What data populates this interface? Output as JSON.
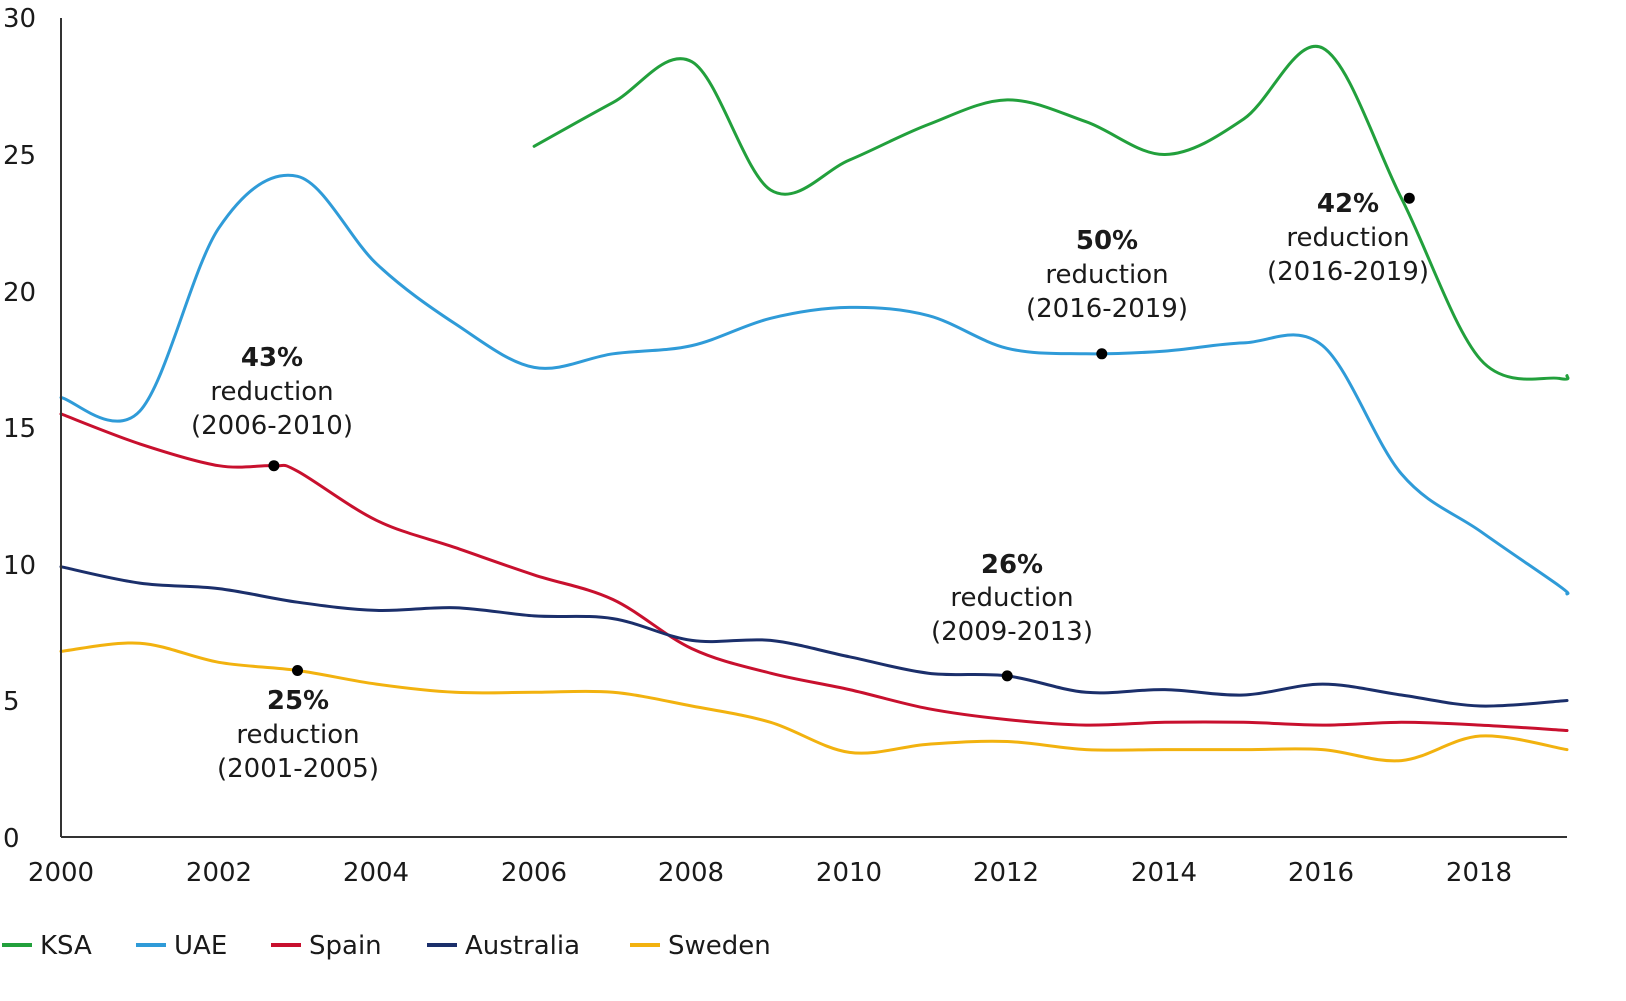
{
  "chart_data": {
    "type": "line",
    "title": "",
    "xlabel": "",
    "ylabel": "",
    "xlim": [
      2000,
      2019.1
    ],
    "ylim": [
      0,
      30
    ],
    "x_ticks": [
      "2000",
      "2002",
      "2004",
      "2006",
      "2008",
      "2010",
      "2012",
      "2014",
      "2016",
      "2018"
    ],
    "y_ticks": [
      "0",
      "5",
      "10",
      "15",
      "20",
      "25",
      "30"
    ],
    "grid": false,
    "legend_position": "bottom",
    "series": [
      {
        "name": "KSA",
        "color": "#22a03c",
        "points": [
          [
            2006,
            25.3
          ],
          [
            2007,
            26.9
          ],
          [
            2008,
            28.4
          ],
          [
            2009,
            23.7
          ],
          [
            2010,
            24.8
          ],
          [
            2011,
            26.1
          ],
          [
            2012,
            27.0
          ],
          [
            2013,
            26.2
          ],
          [
            2014,
            25.0
          ],
          [
            2015,
            26.3
          ],
          [
            2016,
            28.9
          ],
          [
            2017,
            23.4
          ],
          [
            2018,
            17.5
          ],
          [
            2019,
            16.8
          ],
          [
            2019.1,
            16.9
          ]
        ]
      },
      {
        "name": "UAE",
        "color": "#2f9bd8",
        "points": [
          [
            2000,
            16.1
          ],
          [
            2001,
            15.6
          ],
          [
            2002,
            22.3
          ],
          [
            2003,
            24.2
          ],
          [
            2004,
            21.0
          ],
          [
            2005,
            18.8
          ],
          [
            2006,
            17.2
          ],
          [
            2007,
            17.7
          ],
          [
            2008,
            18.0
          ],
          [
            2009,
            19.0
          ],
          [
            2010,
            19.4
          ],
          [
            2011,
            19.1
          ],
          [
            2012,
            17.9
          ],
          [
            2013,
            17.7
          ],
          [
            2014,
            17.8
          ],
          [
            2015,
            18.1
          ],
          [
            2016,
            18.0
          ],
          [
            2017,
            13.3
          ],
          [
            2018,
            11.2
          ],
          [
            2019,
            9.2
          ],
          [
            2019.1,
            8.9
          ]
        ]
      },
      {
        "name": "Spain",
        "color": "#c8102e",
        "points": [
          [
            2000,
            15.5
          ],
          [
            2001,
            14.4
          ],
          [
            2002,
            13.6
          ],
          [
            2002.7,
            13.6
          ],
          [
            2003,
            13.4
          ],
          [
            2004,
            11.6
          ],
          [
            2005,
            10.6
          ],
          [
            2006,
            9.6
          ],
          [
            2007,
            8.7
          ],
          [
            2008,
            6.9
          ],
          [
            2009,
            6.0
          ],
          [
            2010,
            5.4
          ],
          [
            2011,
            4.7
          ],
          [
            2012,
            4.3
          ],
          [
            2013,
            4.1
          ],
          [
            2014,
            4.2
          ],
          [
            2015,
            4.2
          ],
          [
            2016,
            4.1
          ],
          [
            2017,
            4.2
          ],
          [
            2018,
            4.1
          ],
          [
            2019.1,
            3.9
          ]
        ]
      },
      {
        "name": "Australia",
        "color": "#1b2f6b",
        "points": [
          [
            2000,
            9.9
          ],
          [
            2001,
            9.3
          ],
          [
            2002,
            9.1
          ],
          [
            2003,
            8.6
          ],
          [
            2004,
            8.3
          ],
          [
            2005,
            8.4
          ],
          [
            2006,
            8.1
          ],
          [
            2007,
            8.0
          ],
          [
            2008,
            7.2
          ],
          [
            2009,
            7.2
          ],
          [
            2010,
            6.6
          ],
          [
            2011,
            6.0
          ],
          [
            2012,
            5.9
          ],
          [
            2013,
            5.3
          ],
          [
            2014,
            5.4
          ],
          [
            2015,
            5.2
          ],
          [
            2016,
            5.6
          ],
          [
            2017,
            5.2
          ],
          [
            2018,
            4.8
          ],
          [
            2019.1,
            5.0
          ]
        ]
      },
      {
        "name": "Sweden",
        "color": "#f2b20f",
        "points": [
          [
            2000,
            6.8
          ],
          [
            2001,
            7.1
          ],
          [
            2002,
            6.4
          ],
          [
            2003,
            6.1
          ],
          [
            2004,
            5.6
          ],
          [
            2005,
            5.3
          ],
          [
            2006,
            5.3
          ],
          [
            2007,
            5.3
          ],
          [
            2008,
            4.8
          ],
          [
            2009,
            4.2
          ],
          [
            2010,
            3.1
          ],
          [
            2011,
            3.4
          ],
          [
            2012,
            3.5
          ],
          [
            2013,
            3.2
          ],
          [
            2014,
            3.2
          ],
          [
            2015,
            3.2
          ],
          [
            2016,
            3.2
          ],
          [
            2017,
            2.8
          ],
          [
            2018,
            3.7
          ],
          [
            2019.1,
            3.2
          ]
        ]
      }
    ],
    "annotations": [
      {
        "percent": "43%",
        "label": "reduction",
        "period": "(2006-2010)",
        "point": [
          2002.7,
          13.6
        ]
      },
      {
        "percent": "25%",
        "label": "reduction",
        "period": "(2001-2005)",
        "point": [
          2003.0,
          6.1
        ]
      },
      {
        "percent": "26%",
        "label": "reduction",
        "period": "(2009-2013)",
        "point": [
          2012.0,
          5.9
        ]
      },
      {
        "percent": "50%",
        "label": "reduction",
        "period": "(2016-2019)",
        "point": [
          2013.2,
          17.7
        ]
      },
      {
        "percent": "42%",
        "label": "reduction",
        "period": "(2016-2019)",
        "point": [
          2017.1,
          23.4
        ]
      }
    ]
  }
}
